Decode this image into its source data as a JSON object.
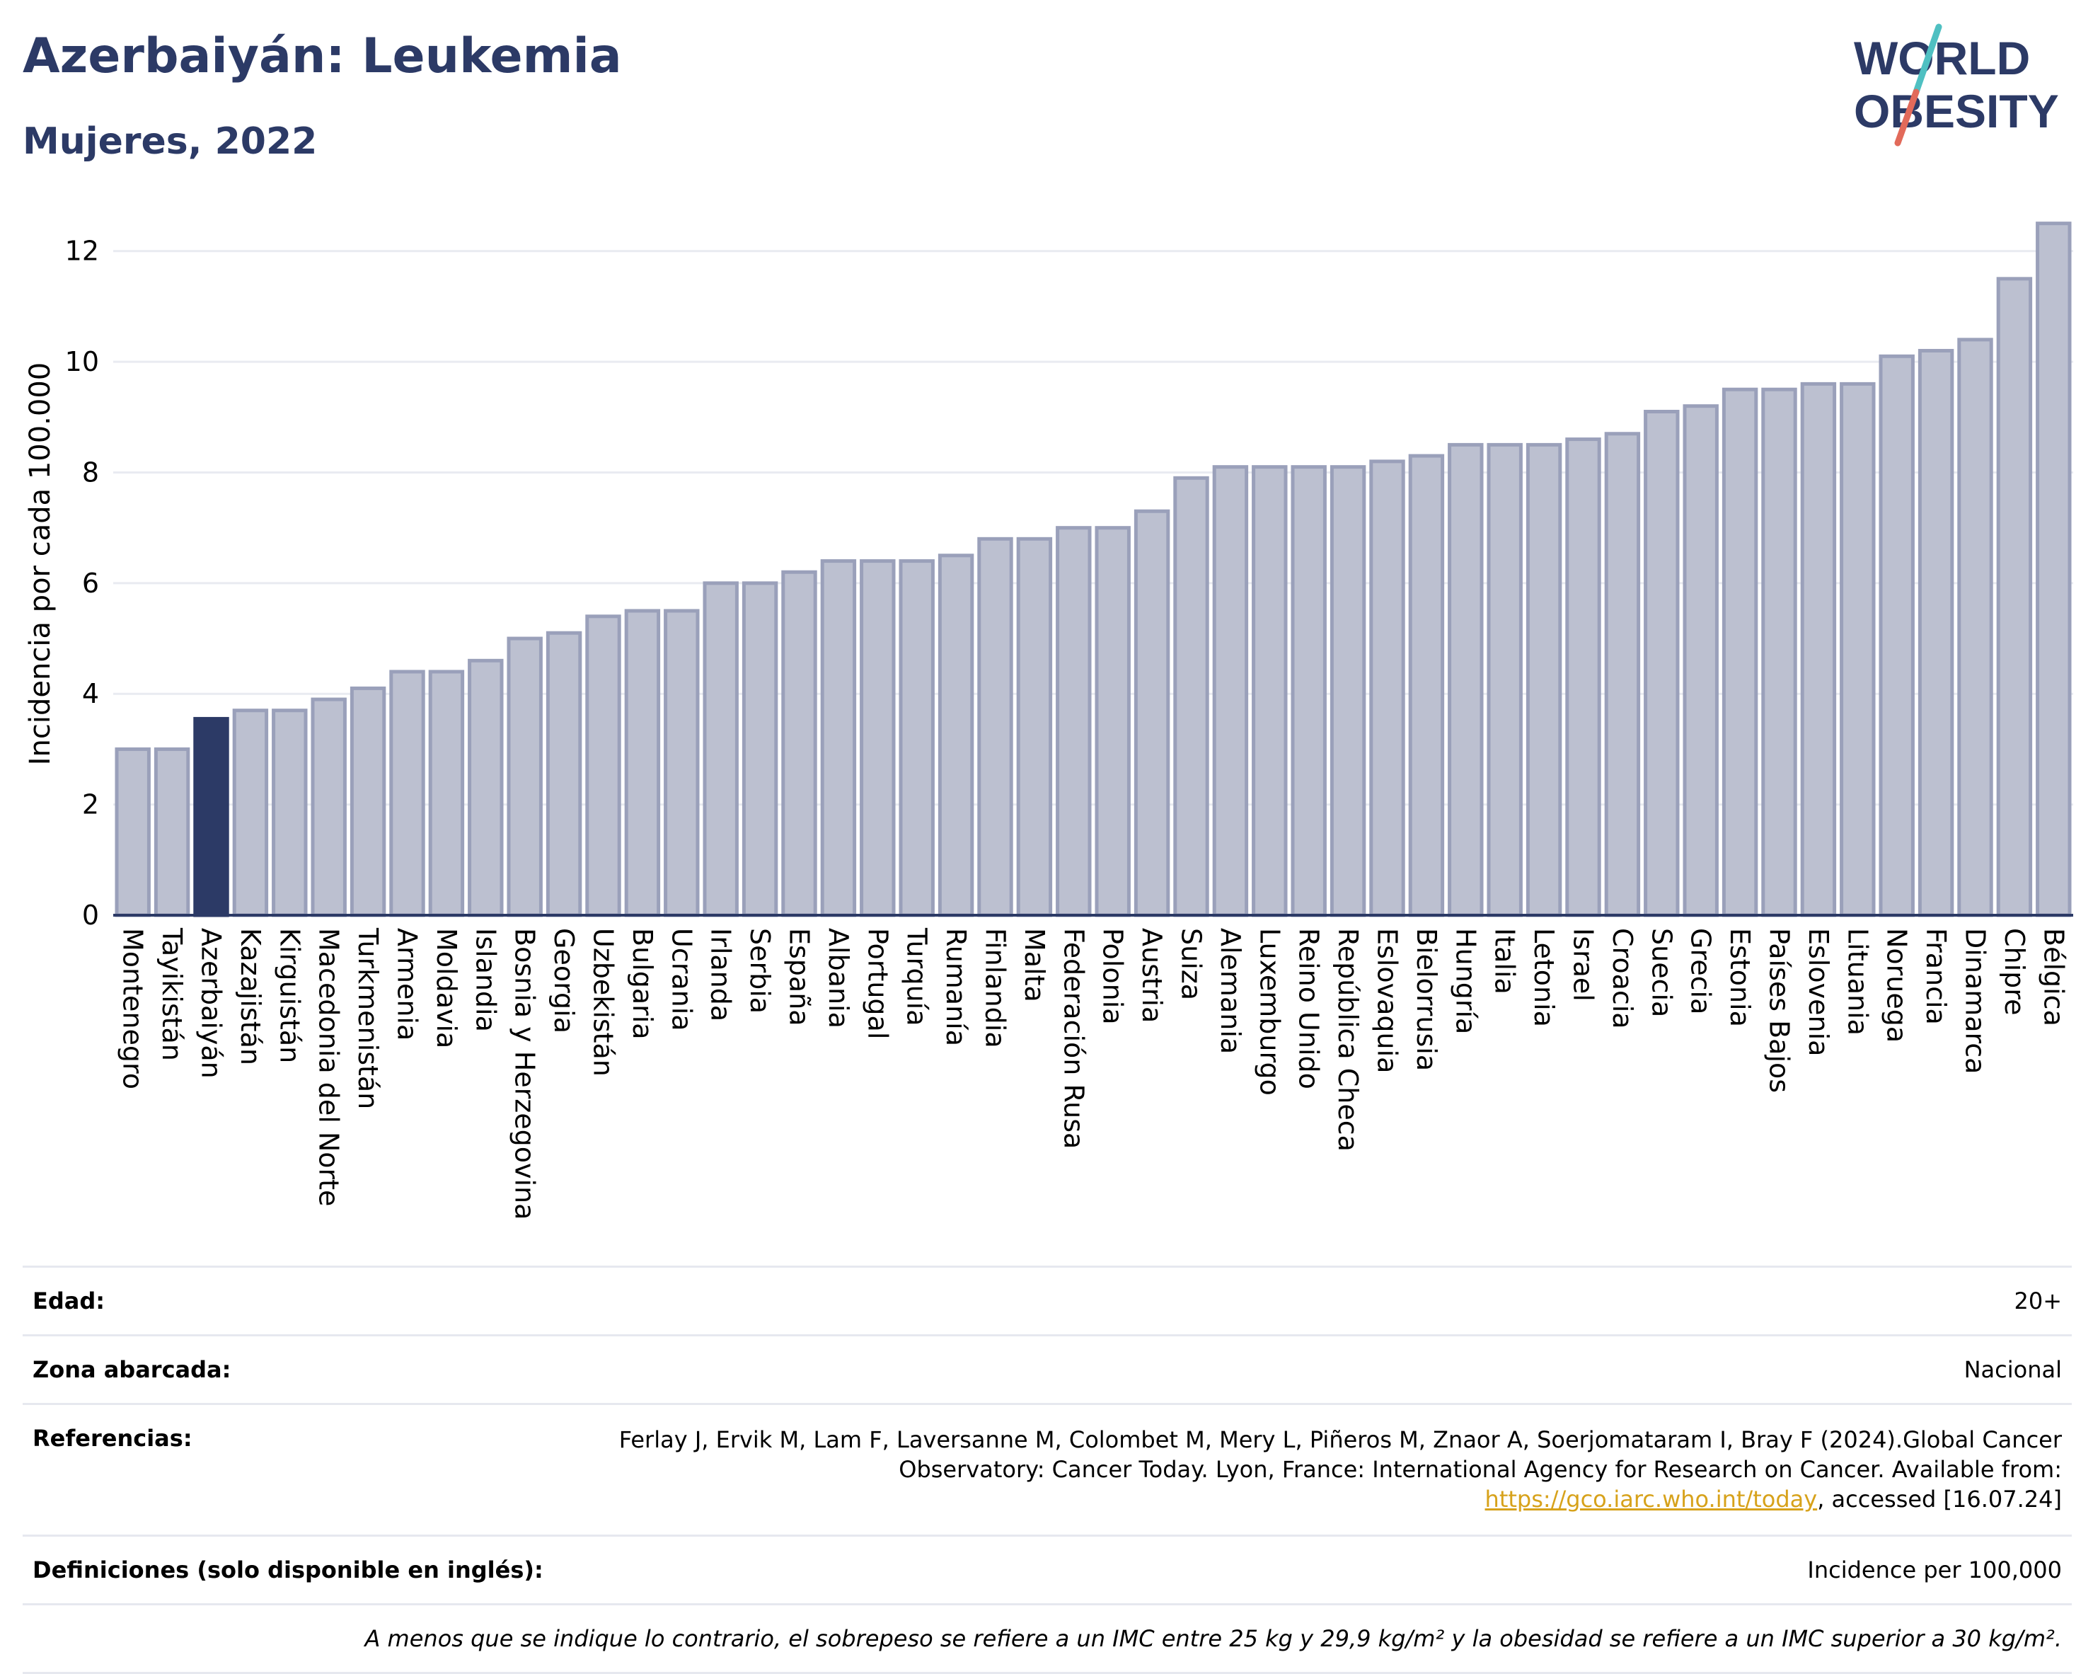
{
  "header": {
    "title": "Azerbaiyán: Leukemia",
    "subtitle": "Mujeres, 2022"
  },
  "logo": {
    "line1": "WORLD",
    "line2": "OBESITY",
    "accent_colors": [
      "#4fc0c2",
      "#e26a5a"
    ]
  },
  "colors": {
    "highlight": "#2c3a66",
    "bar": "#bcc0d0",
    "bar_stroke": "#9aa0ba",
    "axis": "#2c3a66",
    "grid": "#e9ebf1"
  },
  "chart_data": {
    "type": "bar",
    "ylabel": "Incidencia por cada 100.000",
    "ylim": [
      0,
      12.7
    ],
    "yticks": [
      0,
      2,
      4,
      6,
      8,
      10,
      12
    ],
    "grid": true,
    "highlight": "Azerbaiyán",
    "categories": [
      "Montenegro",
      "Tayikistán",
      "Azerbaiyán",
      "Kazajistán",
      "Kirguistán",
      "Macedonia del Norte",
      "Turkmenistán",
      "Armenia",
      "Moldavia",
      "Islandia",
      "Bosnia y Herzegovina",
      "Georgia",
      "Uzbekistán",
      "Bulgaria",
      "Ucrania",
      "Irlanda",
      "Serbia",
      "España",
      "Albania",
      "Portugal",
      "Turquía",
      "Rumanía",
      "Finlandia",
      "Malta",
      "Federación Rusa",
      "Polonia",
      "Austria",
      "Suiza",
      "Alemania",
      "Luxemburgo",
      "Reino Unido",
      "República Checa",
      "Eslovaquia",
      "Bielorrusia",
      "Hungría",
      "Italia",
      "Letonia",
      "Israel",
      "Croacia",
      "Suecia",
      "Grecia",
      "Estonia",
      "Países Bajos",
      "Eslovenia",
      "Lituania",
      "Noruega",
      "Francia",
      "Dinamarca",
      "Chipre",
      "Bélgica"
    ],
    "values": [
      3.0,
      3.0,
      3.55,
      3.7,
      3.7,
      3.9,
      4.1,
      4.4,
      4.4,
      4.6,
      5.0,
      5.1,
      5.4,
      5.5,
      5.5,
      6.0,
      6.0,
      6.2,
      6.4,
      6.4,
      6.4,
      6.5,
      6.8,
      6.8,
      7.0,
      7.0,
      7.3,
      7.9,
      8.1,
      8.1,
      8.1,
      8.1,
      8.2,
      8.3,
      8.5,
      8.5,
      8.5,
      8.6,
      8.7,
      9.1,
      9.2,
      9.5,
      9.5,
      9.6,
      9.6,
      10.1,
      10.2,
      10.4,
      11.5,
      12.5
    ]
  },
  "details": {
    "age_label": "Edad:",
    "age_value": "20+",
    "area_label": "Zona abarcada:",
    "area_value": "Nacional",
    "ref_label": "Referencias:",
    "ref_text": "Ferlay J, Ervik M, Lam F, Laversanne M, Colombet M, Mery L, Piñeros M, Znaor A, Soerjomataram I, Bray F (2024).Global Cancer Observatory: Cancer Today. Lyon, France: International Agency for Research on Cancer. Available from: ",
    "ref_link": "https://gco.iarc.who.int/today",
    "ref_tail": ", accessed [16.07.24]",
    "def_label": "Definiciones (solo disponible en inglés):",
    "def_value": "Incidence per 100,000",
    "note": "A menos que se indique lo contrario, el sobrepeso se refiere a un IMC entre 25 kg y 29,9 kg/m² y la obesidad se refiere a un IMC superior a 30 kg/m²."
  }
}
